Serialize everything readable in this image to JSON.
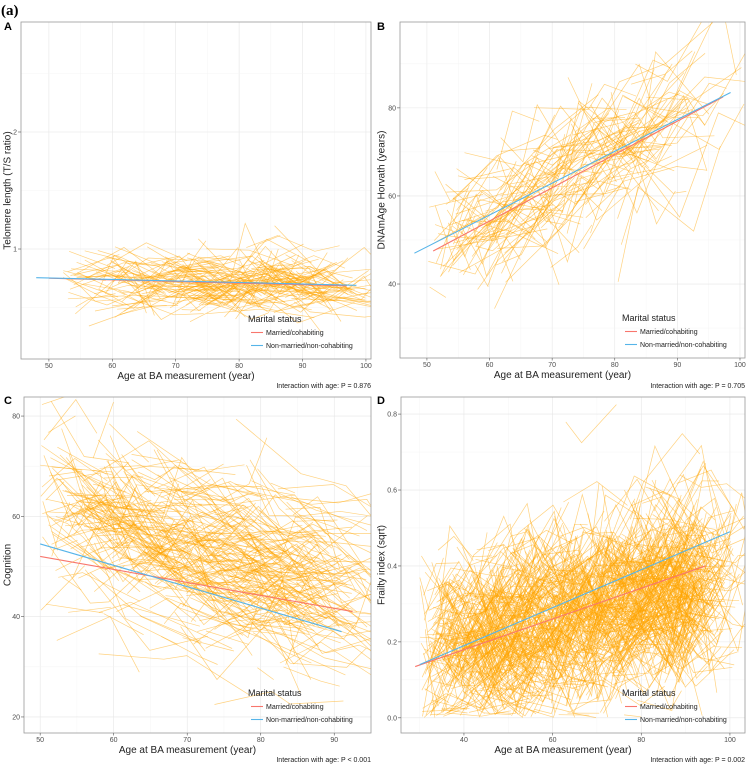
{
  "figure_label": "(a)",
  "chart_data": [
    {
      "type": "line",
      "panel": "A",
      "xlabel": "Age at BA measurement (year)",
      "ylabel": "Telomere length (T/S ratio)",
      "xlim": [
        45.6,
        100.8
      ],
      "ylim": [
        0.06,
        2.94
      ],
      "xticks": [
        50,
        60,
        70,
        80,
        90,
        100
      ],
      "xtick_labels": [
        "50",
        "60",
        "70",
        "80",
        "90",
        "100"
      ],
      "yticks": [
        1,
        2
      ],
      "ytick_labels": [
        "1",
        "2"
      ],
      "grid": true,
      "legend": {
        "title": "Marital status",
        "placement": "bottom-right"
      },
      "series": [
        {
          "name": "Married/cohabiting",
          "color": "#F8766D",
          "x": [
            50,
            97
          ],
          "y": [
            0.75,
            0.685
          ]
        },
        {
          "name": "Non-married/non-cohabiting",
          "color": "#56B4E9",
          "x": [
            48,
            98.5
          ],
          "y": [
            0.755,
            0.69
          ]
        }
      ],
      "individual_trajectories": {
        "color": "#FFA500",
        "n": 220,
        "age_range": [
          52,
          95
        ],
        "sd_between": 0.09,
        "sd_within": 0.12,
        "floor": 0.2,
        "seed": 11
      },
      "caption": "Interaction with age: P = 0.876"
    },
    {
      "type": "line",
      "panel": "B",
      "xlabel": "Age at BA measurement (year)",
      "ylabel": "DNAmAge Horvath (years)",
      "xlim": [
        45.7,
        100.8
      ],
      "ylim": [
        23.2,
        99.5
      ],
      "xticks": [
        50,
        60,
        70,
        80,
        90,
        100
      ],
      "xtick_labels": [
        "50",
        "60",
        "70",
        "80",
        "90",
        "100"
      ],
      "yticks": [
        40,
        60,
        80
      ],
      "ytick_labels": [
        "40",
        "60",
        "80"
      ],
      "grid": true,
      "legend": {
        "title": "Marital status",
        "placement": "bottom-right"
      },
      "series": [
        {
          "name": "Married/cohabiting",
          "color": "#F8766D",
          "x": [
            51,
            97.3
          ],
          "y": [
            47.5,
            82.5
          ]
        },
        {
          "name": "Non-married/non-cohabiting",
          "color": "#56B4E9",
          "x": [
            48,
            98.5
          ],
          "y": [
            47,
            83.5
          ]
        }
      ],
      "individual_trajectories": {
        "color": "#FFA500",
        "n": 200,
        "age_range": [
          50,
          92
        ],
        "sd_between": 5,
        "sd_within": 6,
        "floor": 28,
        "seed": 23
      },
      "caption": "Interaction with age: P = 0.705"
    },
    {
      "type": "line",
      "panel": "C",
      "xlabel": "Age at BA measurement (year)",
      "ylabel": "Cognition",
      "xlim": [
        47.8,
        95
      ],
      "ylim": [
        16.8,
        83.8
      ],
      "xticks": [
        50,
        60,
        70,
        80,
        90
      ],
      "xtick_labels": [
        "50",
        "60",
        "70",
        "80",
        "90"
      ],
      "yticks": [
        20,
        40,
        60,
        80
      ],
      "ytick_labels": [
        "20",
        "40",
        "60",
        "80"
      ],
      "grid": true,
      "legend": {
        "title": "Marital status",
        "placement": "bottom-right"
      },
      "series": [
        {
          "name": "Married/cohabiting",
          "color": "#F8766D",
          "x": [
            50,
            92.5
          ],
          "y": [
            52,
            41
          ]
        },
        {
          "name": "Non-married/non-cohabiting",
          "color": "#56B4E9",
          "x": [
            50,
            91
          ],
          "y": [
            54.5,
            37
          ]
        }
      ],
      "individual_trajectories": {
        "color": "#FFA500",
        "n": 450,
        "age_range": [
          50,
          92
        ],
        "center": [
          [
            50,
            61
          ],
          [
            92,
            45
          ]
        ],
        "sd_between": 8,
        "sd_within": 4,
        "floor": 22,
        "seed": 37
      },
      "caption": "Interaction with age: P < 0.001"
    },
    {
      "type": "line",
      "panel": "D",
      "xlabel": "Age at BA measurement (year)",
      "ylabel": "Frailty index (sqrt)",
      "xlim": [
        25.8,
        103.4
      ],
      "ylim": [
        -0.04,
        0.845
      ],
      "xticks": [
        40,
        60,
        80,
        100
      ],
      "xtick_labels": [
        "40",
        "60",
        "80",
        "100"
      ],
      "yticks": [
        0,
        0.2,
        0.4,
        0.6,
        0.8
      ],
      "ytick_labels": [
        "0.0",
        "0.2",
        "0.4",
        "0.6",
        "0.8"
      ],
      "grid": true,
      "legend": {
        "title": "Marital status",
        "placement": "bottom-right"
      },
      "series": [
        {
          "name": "Married/cohabiting",
          "color": "#F8766D",
          "x": [
            29,
            94.5
          ],
          "y": [
            0.135,
            0.4
          ]
        },
        {
          "name": "Non-married/non-cohabiting",
          "color": "#56B4E9",
          "x": [
            30,
            100
          ],
          "y": [
            0.14,
            0.49
          ]
        }
      ],
      "individual_trajectories": {
        "color": "#FFA500",
        "n": 1100,
        "age_range": [
          30,
          95
        ],
        "center": [
          [
            30,
            0.17
          ],
          [
            95,
            0.36
          ]
        ],
        "sd_between": 0.09,
        "sd_within": 0.08,
        "floor": 0,
        "seed": 53
      },
      "caption": "Interaction with age: P = 0.002"
    }
  ]
}
